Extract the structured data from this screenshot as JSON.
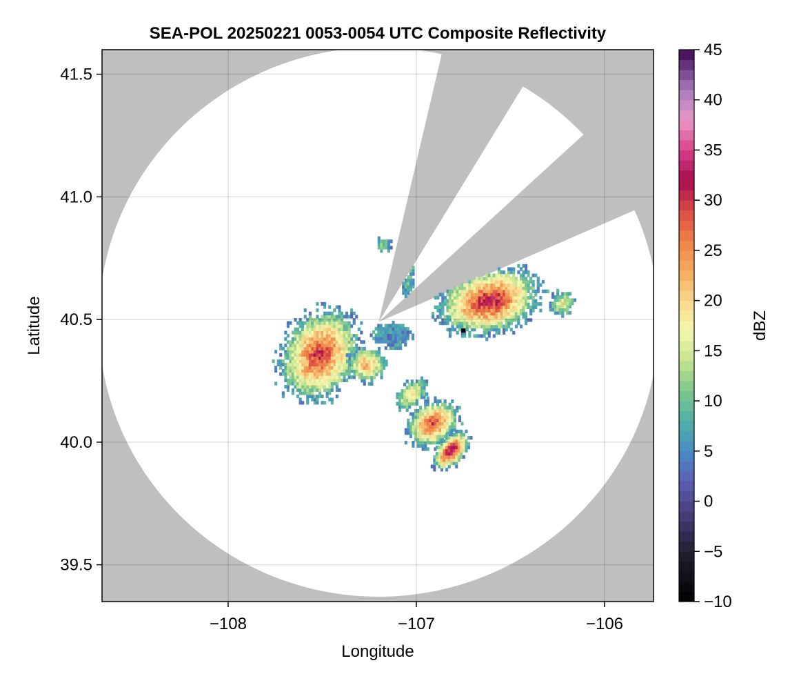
{
  "chart_data": {
    "type": "heatmap",
    "title": "SEA-POL 20250221 0053-0054 UTC Composite Reflectivity",
    "xlabel": "Longitude",
    "ylabel": "Latitude",
    "xlim": [
      -108.67,
      -105.74
    ],
    "ylim": [
      39.35,
      41.6
    ],
    "x_ticks": [
      -108,
      -107,
      -106
    ],
    "x_tick_labels": [
      "−108",
      "−107",
      "−106"
    ],
    "y_ticks": [
      39.5,
      40.0,
      40.5,
      41.0,
      41.5
    ],
    "y_tick_labels": [
      "39.5",
      "40.0",
      "40.5",
      "41.0",
      "41.5"
    ],
    "grid": true,
    "background_color": "#bfbfbf",
    "radar_coverage": {
      "center_lon": -107.2,
      "center_lat": 40.49,
      "radius_deg_lat": 1.12,
      "blanked_sectors_deg_from_north": [
        [
          13,
          31
        ],
        [
          47,
          66
        ]
      ]
    },
    "radar_site_marker": {
      "lon": -106.75,
      "lat": 40.455
    },
    "echo_regions": [
      {
        "name": "western cell",
        "lon": -107.5,
        "lat": 40.35,
        "max_dbz": 30
      },
      {
        "name": "eastern cell",
        "lon": -106.6,
        "lat": 40.55,
        "max_dbz": 32
      },
      {
        "name": "southern cell",
        "lon": -106.9,
        "lat": 40.05,
        "max_dbz": 33
      }
    ],
    "colorbar": {
      "label": "dBZ",
      "min": -10,
      "max": 45,
      "ticks": [
        -10,
        -5,
        0,
        5,
        10,
        15,
        20,
        25,
        30,
        35,
        40,
        45
      ],
      "tick_labels": [
        "−10",
        "−5",
        "0",
        "5",
        "10",
        "15",
        "20",
        "25",
        "30",
        "35",
        "40",
        "45"
      ],
      "colormap_stops": [
        {
          "v": -10,
          "c": "#000000"
        },
        {
          "v": -5,
          "c": "#241f33"
        },
        {
          "v": -1,
          "c": "#4a3f7e"
        },
        {
          "v": 2,
          "c": "#5b5eb0"
        },
        {
          "v": 5,
          "c": "#4a8cc5"
        },
        {
          "v": 8,
          "c": "#4fb0a6"
        },
        {
          "v": 11,
          "c": "#7ec78e"
        },
        {
          "v": 14,
          "c": "#c3e38f"
        },
        {
          "v": 17,
          "c": "#f6f7b0"
        },
        {
          "v": 20,
          "c": "#f7d98c"
        },
        {
          "v": 23,
          "c": "#f3aa60"
        },
        {
          "v": 26,
          "c": "#ef8147"
        },
        {
          "v": 29,
          "c": "#d94a45"
        },
        {
          "v": 32,
          "c": "#a80c50"
        },
        {
          "v": 35,
          "c": "#d6418b"
        },
        {
          "v": 38,
          "c": "#e99ac6"
        },
        {
          "v": 41,
          "c": "#a77bbd"
        },
        {
          "v": 45,
          "c": "#3c0751"
        }
      ]
    }
  }
}
